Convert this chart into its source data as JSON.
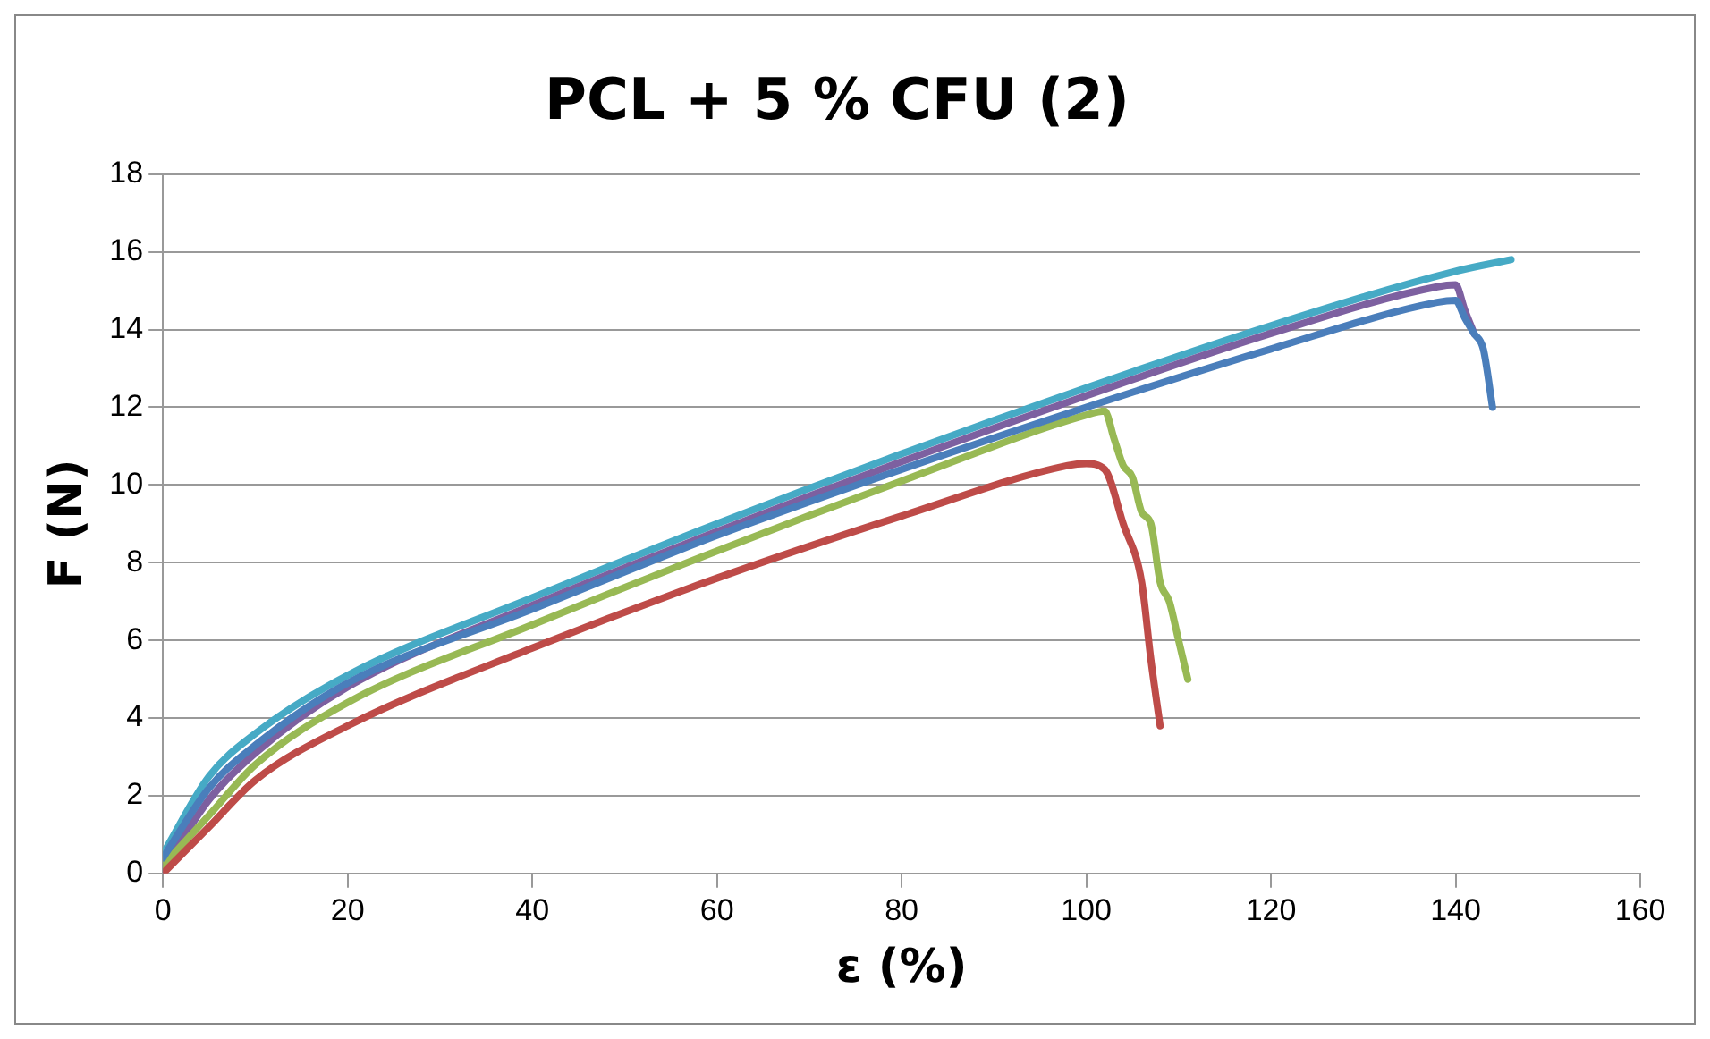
{
  "chart_data": {
    "type": "line",
    "title": "PCL + 5 % CFU (2)",
    "xlabel": "ε (%)",
    "ylabel": "F (N)",
    "xlim": [
      0,
      160
    ],
    "xticks": [
      0,
      20,
      40,
      60,
      80,
      100,
      120,
      140,
      160
    ],
    "ylim": [
      0,
      18
    ],
    "yticks": [
      0,
      2,
      4,
      6,
      8,
      10,
      12,
      14,
      16,
      18
    ],
    "grid": "y",
    "legend": false,
    "marker": "none",
    "line_style": "solid",
    "series": [
      {
        "color": "#4a7ebb",
        "x": [
          0,
          5,
          10,
          20,
          40,
          60,
          80,
          100,
          120,
          138,
          140,
          141,
          142,
          143,
          144
        ],
        "values": [
          0.4,
          2.2,
          3.3,
          4.9,
          6.8,
          8.7,
          10.4,
          12.0,
          13.5,
          14.7,
          14.75,
          14.3,
          13.9,
          13.5,
          12.0
        ]
      },
      {
        "color": "#be4b48",
        "x": [
          0,
          5,
          10,
          20,
          40,
          60,
          80,
          98,
          100,
          102,
          104,
          106,
          107,
          108
        ],
        "values": [
          0,
          1.2,
          2.4,
          3.8,
          5.8,
          7.6,
          9.2,
          10.5,
          10.55,
          10.4,
          9.0,
          7.5,
          5.5,
          3.8
        ]
      },
      {
        "color": "#98b954",
        "x": [
          0,
          5,
          10,
          20,
          40,
          60,
          80,
          100,
          102,
          103,
          104,
          105,
          106,
          107,
          108,
          109,
          110,
          111
        ],
        "values": [
          0.2,
          1.5,
          2.8,
          4.4,
          6.4,
          8.3,
          10.1,
          11.8,
          11.9,
          11.2,
          10.5,
          10.2,
          9.3,
          9.0,
          7.5,
          7.0,
          6.0,
          5.0
        ]
      },
      {
        "color": "#7d60a0",
        "x": [
          0,
          5,
          10,
          20,
          40,
          60,
          80,
          100,
          120,
          138,
          140,
          141,
          142
        ],
        "values": [
          0.1,
          1.9,
          3.1,
          4.8,
          6.9,
          8.8,
          10.6,
          12.3,
          13.9,
          15.1,
          15.15,
          14.5,
          13.9
        ]
      },
      {
        "color": "#46aac5",
        "x": [
          0,
          5,
          10,
          20,
          40,
          60,
          80,
          100,
          120,
          140,
          146
        ],
        "values": [
          0.5,
          2.5,
          3.6,
          5.1,
          7.1,
          9.0,
          10.8,
          12.5,
          14.1,
          15.5,
          15.8
        ]
      }
    ]
  }
}
